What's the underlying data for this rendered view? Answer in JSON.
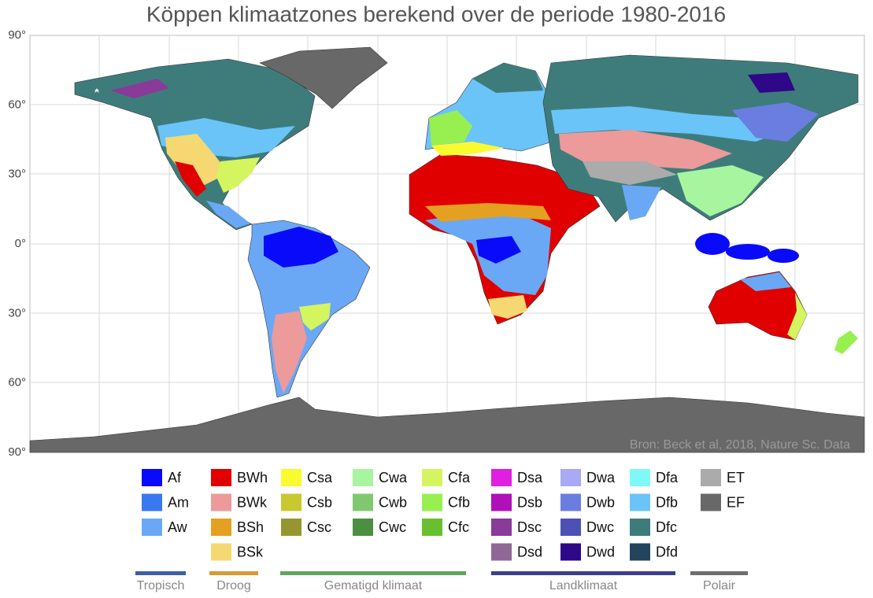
{
  "title": "Köppen klimaatzones berekend over de periode 1980-2016",
  "map": {
    "lat_labels": [
      "90°",
      "60°",
      "30°",
      "0°",
      "30°",
      "60°",
      "90°"
    ],
    "source": "Bron:  Beck et al, 2018, Nature Sc. Data"
  },
  "legend": {
    "columns": [
      [
        {
          "code": "Af",
          "color": "#0a0afa"
        },
        {
          "code": "Am",
          "color": "#3a78f0"
        },
        {
          "code": "Aw",
          "color": "#6aa8f5"
        }
      ],
      [
        {
          "code": "BWh",
          "color": "#e00000"
        },
        {
          "code": "BWk",
          "color": "#ec9a9a"
        },
        {
          "code": "BSh",
          "color": "#e4a020"
        },
        {
          "code": "BSk",
          "color": "#f5d872"
        }
      ],
      [
        {
          "code": "Csa",
          "color": "#fafa30"
        },
        {
          "code": "Csb",
          "color": "#c8c830"
        },
        {
          "code": "Csc",
          "color": "#969630"
        }
      ],
      [
        {
          "code": "Cwa",
          "color": "#a8f5a0"
        },
        {
          "code": "Cwb",
          "color": "#80c870"
        },
        {
          "code": "Cwc",
          "color": "#4a9040"
        }
      ],
      [
        {
          "code": "Cfa",
          "color": "#d4f560"
        },
        {
          "code": "Cfb",
          "color": "#98f050"
        },
        {
          "code": "Cfc",
          "color": "#68c030"
        }
      ],
      [
        {
          "code": "Dsa",
          "color": "#e020e0"
        },
        {
          "code": "Dsb",
          "color": "#b010b8"
        },
        {
          "code": "Dsc",
          "color": "#8a3a98"
        },
        {
          "code": "Dsd",
          "color": "#906898"
        }
      ],
      [
        {
          "code": "Dwa",
          "color": "#a8aaf5"
        },
        {
          "code": "Dwb",
          "color": "#6a7ee0"
        },
        {
          "code": "Dwc",
          "color": "#4c52b4"
        },
        {
          "code": "Dwd",
          "color": "#2e0888"
        }
      ],
      [
        {
          "code": "Dfa",
          "color": "#80f8f8"
        },
        {
          "code": "Dfb",
          "color": "#6ac4f8"
        },
        {
          "code": "Dfc",
          "color": "#3e7c7c"
        },
        {
          "code": "Dfd",
          "color": "#23435e"
        }
      ],
      [
        {
          "code": "ET",
          "color": "#ababab"
        },
        {
          "code": "EF",
          "color": "#686868"
        }
      ]
    ]
  },
  "groups": [
    {
      "label": "Tropisch",
      "color": "#3d5fa8"
    },
    {
      "label": "Droog",
      "color": "#d99a36"
    },
    {
      "label": "Gematigd klimaat",
      "color": "#5ea55c"
    },
    {
      "label": "Landklimaat",
      "color": "#3d3f8e"
    },
    {
      "label": "Polair",
      "color": "#6e6e6e"
    }
  ]
}
